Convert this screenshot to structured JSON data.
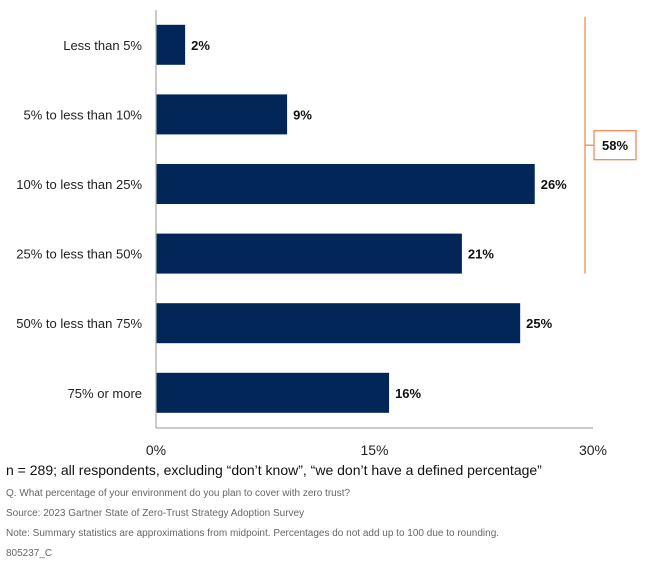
{
  "chart_data": {
    "type": "bar",
    "orientation": "horizontal",
    "title": "",
    "xlabel": "",
    "ylabel": "",
    "categories": [
      "Less than 5%",
      "5% to less than 10%",
      "10% to less than 25%",
      "25% to less than 50%",
      "50% to less than 75%",
      "75% or more"
    ],
    "values": [
      2,
      9,
      26,
      21,
      25,
      16
    ],
    "value_labels": [
      "2%",
      "9%",
      "26%",
      "21%",
      "25%",
      "16%"
    ],
    "unit": "%",
    "xlim": [
      0,
      30
    ],
    "ticks": [
      0,
      15,
      30
    ],
    "tick_labels": [
      "0%",
      "15%",
      "30%"
    ],
    "grid": false,
    "legend": null,
    "bar_color": "#022658",
    "annotation": {
      "type": "bracket",
      "spans_categories": [
        "Less than 5%",
        "5% to less than 10%",
        "10% to less than 25%",
        "25% to less than 50%"
      ],
      "label": "58%",
      "color": "#F08A5D",
      "placement": "right"
    }
  },
  "footnotes": {
    "sample": "n = 289; all respondents, excluding “don’t know”, “we don’t have a defined percentage”",
    "question": "Q. What percentage of your environment do you plan to cover with zero trust?",
    "source": "Source: 2023 Gartner State of Zero-Trust Strategy Adoption Survey",
    "note": "Note: Summary statistics are approximations from midpoint. Percentages do not add up to 100 due to rounding.",
    "id": "805237_C"
  }
}
